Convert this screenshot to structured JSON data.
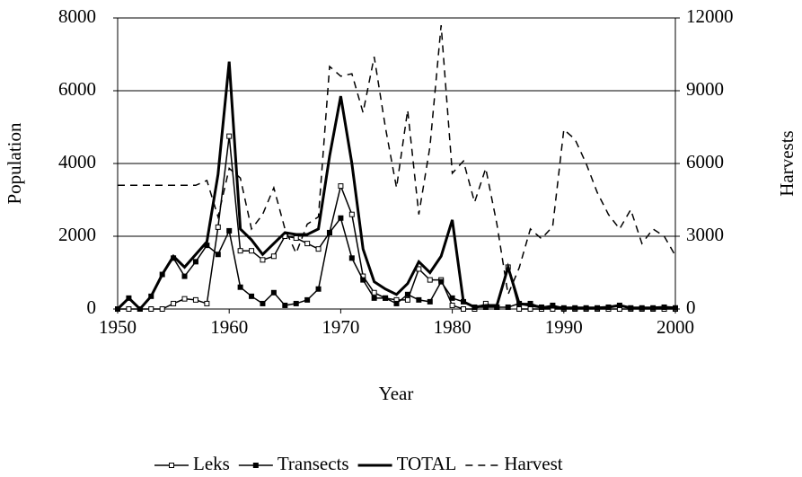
{
  "chart_data": {
    "type": "line",
    "x_label": "Year",
    "y_label": "Population",
    "y2_label": "Harvests",
    "x": [
      1950,
      1951,
      1952,
      1953,
      1954,
      1955,
      1956,
      1957,
      1958,
      1959,
      1960,
      1961,
      1962,
      1963,
      1964,
      1965,
      1966,
      1967,
      1968,
      1969,
      1970,
      1971,
      1972,
      1973,
      1974,
      1975,
      1976,
      1977,
      1978,
      1979,
      1980,
      1981,
      1982,
      1983,
      1984,
      1985,
      1986,
      1987,
      1988,
      1989,
      1990,
      1991,
      1992,
      1993,
      1994,
      1995,
      1996,
      1997,
      1998,
      1999,
      2000
    ],
    "xlim": [
      1950,
      2000
    ],
    "xticks": [
      1950,
      1960,
      1970,
      1980,
      1990,
      2000
    ],
    "ylim": [
      0,
      8000
    ],
    "yticks": [
      0,
      2000,
      4000,
      6000,
      8000
    ],
    "y2lim": [
      0,
      12000
    ],
    "y2ticks": [
      0,
      3000,
      6000,
      9000,
      12000
    ],
    "grid": true,
    "legend": "bottom",
    "series": [
      {
        "name": "Leks",
        "color": "#000000",
        "marker": "open-square",
        "values": [
          0,
          0,
          0,
          0,
          0,
          150,
          280,
          250,
          150,
          2250,
          4750,
          1600,
          1600,
          1350,
          1450,
          2000,
          1950,
          1800,
          1650,
          2100,
          3380,
          2600,
          900,
          450,
          300,
          250,
          250,
          1100,
          800,
          800,
          100,
          0,
          0,
          150,
          50,
          1150,
          0,
          0,
          0,
          0,
          0,
          0,
          0,
          0,
          0,
          0,
          0,
          0,
          0,
          0,
          0
        ]
      },
      {
        "name": "Transects",
        "color": "#000000",
        "marker": "filled-square",
        "values": [
          0,
          300,
          0,
          350,
          950,
          1400,
          900,
          1300,
          1750,
          1500,
          2150,
          600,
          350,
          150,
          450,
          100,
          150,
          250,
          550,
          2100,
          2500,
          1400,
          800,
          300,
          300,
          150,
          400,
          250,
          200,
          750,
          300,
          200,
          50,
          50,
          50,
          50,
          150,
          150,
          50,
          100,
          30,
          30,
          30,
          30,
          50,
          100,
          30,
          30,
          30,
          50,
          30
        ]
      },
      {
        "name": "TOTAL",
        "color": "#000000",
        "line": "thick",
        "values": [
          0,
          300,
          0,
          350,
          950,
          1450,
          1150,
          1500,
          1850,
          3700,
          6800,
          2200,
          1900,
          1500,
          1800,
          2100,
          2050,
          2050,
          2200,
          4200,
          5850,
          4000,
          1650,
          750,
          550,
          400,
          700,
          1300,
          1000,
          1450,
          2450,
          200,
          50,
          100,
          100,
          1150,
          150,
          100,
          50,
          50,
          30,
          30,
          30,
          30,
          50,
          100,
          30,
          30,
          30,
          50,
          30
        ]
      },
      {
        "name": "Harvest",
        "color": "#000000",
        "line": "dashed",
        "axis": "y2",
        "values": [
          5100,
          5100,
          5100,
          5100,
          5100,
          5100,
          5100,
          5100,
          5300,
          3800,
          5800,
          5400,
          3300,
          3900,
          5000,
          3300,
          2300,
          3500,
          3800,
          10000,
          9600,
          9700,
          8100,
          10400,
          7500,
          5000,
          8200,
          3900,
          6700,
          11700,
          5600,
          6100,
          4400,
          5800,
          3500,
          600,
          1700,
          3300,
          2900,
          3400,
          7400,
          7000,
          6000,
          4800,
          3900,
          3300,
          4100,
          2700,
          3300,
          3000,
          2200
        ]
      }
    ]
  }
}
